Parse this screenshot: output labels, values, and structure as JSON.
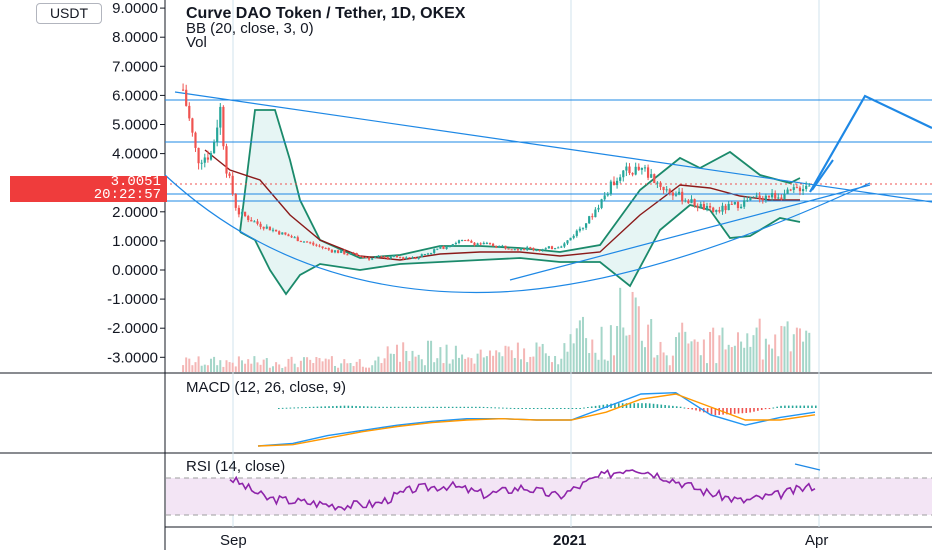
{
  "header": {
    "title": "Curve DAO Token / Tether, 1D, OKEX",
    "indicator_bb": "BB (20, close, 3, 0)",
    "indicator_vol": "Vol"
  },
  "currency_tag": "USDT",
  "price_badge": {
    "price": "3.0051",
    "countdown": "20:22:57"
  },
  "colors": {
    "up": "#26a69a",
    "down": "#ef5350",
    "bb_band": "#1b8a6b",
    "bb_basis": "#8b1a1a",
    "trend": "#1e88e5",
    "macd": "#2196f3",
    "signal": "#ff9800",
    "rsi": "#8e24aa",
    "rsi_fill": "#f3e5f5",
    "badge": "#ef3c3c"
  },
  "chart_data": [
    {
      "type": "candlestick",
      "title": "Curve DAO Token / Tether, 1D, OKEX",
      "y_ticks": [
        "9.0000",
        "8.0000",
        "7.0000",
        "6.0000",
        "5.0000",
        "4.0000",
        "2.0000",
        "1.0000",
        "0.0000",
        "-1.0000",
        "-2.0000",
        "-3.0000"
      ],
      "x_ticks": [
        "Sep",
        "2021",
        "Apr"
      ],
      "ylim": [
        -3.4,
        9.2
      ],
      "x_range": [
        "2020-08-14",
        "2021-05-10"
      ],
      "last_price": 3.0051,
      "horizontal_levels": [
        5.85,
        4.4,
        2.6,
        2.35
      ],
      "close_series": {
        "dates": [
          "2020-08-20",
          "2020-08-25",
          "2020-08-30",
          "2020-09-02",
          "2020-09-04",
          "2020-09-08",
          "2020-09-15",
          "2020-09-25",
          "2020-10-10",
          "2020-10-25",
          "2020-11-10",
          "2020-11-25",
          "2020-12-10",
          "2020-12-25",
          "2021-01-01",
          "2021-01-10",
          "2021-01-20",
          "2021-01-28",
          "2021-02-05",
          "2021-02-15",
          "2021-02-22",
          "2021-03-01",
          "2021-03-10",
          "2021-03-20",
          "2021-03-28"
        ],
        "values": [
          6.2,
          3.8,
          4.0,
          5.6,
          3.6,
          2.0,
          1.6,
          1.2,
          0.7,
          0.4,
          0.45,
          1.0,
          0.8,
          0.7,
          0.9,
          1.8,
          3.3,
          3.5,
          2.8,
          2.3,
          2.0,
          2.2,
          2.5,
          2.6,
          3.0
        ]
      }
    },
    {
      "type": "line",
      "title": "MACD (12, 26, close, 9)",
      "series": [
        {
          "name": "MACD",
          "values": [
            -1.0,
            -0.9,
            -0.6,
            -0.4,
            -0.2,
            -0.05,
            0.05,
            0.05,
            0.0,
            0.0,
            0.5,
            1.0,
            1.05,
            0.2,
            -0.2,
            0.1,
            0.3
          ]
        },
        {
          "name": "Signal",
          "values": [
            -1.0,
            -0.95,
            -0.7,
            -0.45,
            -0.25,
            -0.1,
            0.0,
            0.05,
            0.0,
            0.0,
            0.3,
            0.8,
            1.0,
            0.5,
            0.0,
            0.0,
            0.2
          ]
        }
      ]
    },
    {
      "type": "line",
      "title": "RSI (14, close)",
      "series": [
        {
          "name": "RSI",
          "values": [
            70,
            48,
            44,
            40,
            42,
            58,
            62,
            52,
            60,
            50,
            70,
            82,
            70,
            55,
            45,
            52,
            62
          ]
        }
      ],
      "band": [
        30,
        70
      ]
    }
  ]
}
